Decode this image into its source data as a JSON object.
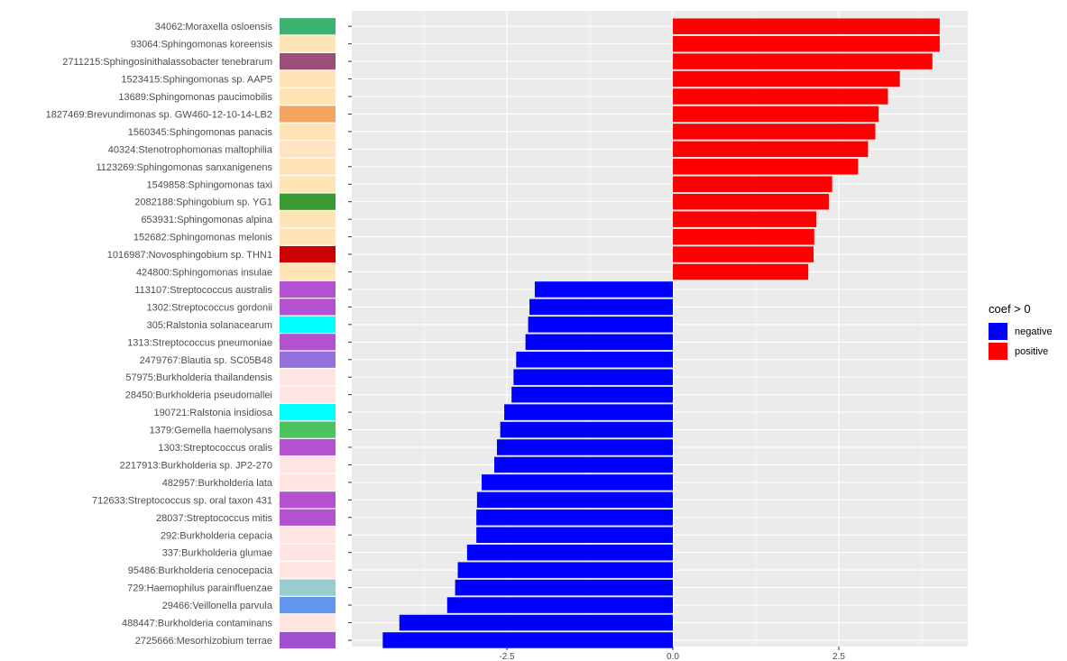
{
  "chart_data": {
    "type": "bar",
    "orientation": "horizontal",
    "xlim": [
      -4.8,
      4.4
    ],
    "x_ticks": [
      -2.5,
      0.0,
      2.5
    ],
    "x_tick_labels": [
      "-2.5",
      "0.0",
      "2.5"
    ],
    "grid": true,
    "legend_title": "coef > 0",
    "legend_placement": "right",
    "legend": [
      {
        "label": "negative",
        "color": "#0000ff"
      },
      {
        "label": "positive",
        "color": "#ff0000"
      }
    ],
    "categories": [
      {
        "label": "34062:Moraxella osloensis",
        "value": 4.02,
        "strip": "#3cb371"
      },
      {
        "label": "93064:Sphingomonas koreensis",
        "value": 4.02,
        "strip": "#ffe4b5"
      },
      {
        "label": "2711215:Sphingosinithalassobacter tenebrarum",
        "value": 3.91,
        "strip": "#9b4f78"
      },
      {
        "label": "1523415:Sphingomonas sp. AAP5",
        "value": 3.42,
        "strip": "#ffe4b5"
      },
      {
        "label": "13689:Sphingomonas paucimobilis",
        "value": 3.24,
        "strip": "#ffe4b5"
      },
      {
        "label": "1827469:Brevundimonas sp. GW460-12-10-14-LB2",
        "value": 3.1,
        "strip": "#f4a460"
      },
      {
        "label": "1560345:Sphingomonas panacis",
        "value": 3.05,
        "strip": "#ffe4b5"
      },
      {
        "label": "40324:Stenotrophomonas maltophilia",
        "value": 2.94,
        "strip": "#ffe4c4"
      },
      {
        "label": "1123269:Sphingomonas sanxanigenens",
        "value": 2.79,
        "strip": "#ffe4b5"
      },
      {
        "label": "1549858:Sphingomonas taxi",
        "value": 2.4,
        "strip": "#ffe4b5"
      },
      {
        "label": "2082188:Sphingobium sp. YG1",
        "value": 2.35,
        "strip": "#3a9a32"
      },
      {
        "label": "653931:Sphingomonas alpina",
        "value": 2.16,
        "strip": "#ffe4b5"
      },
      {
        "label": "152682:Sphingomonas melonis",
        "value": 2.13,
        "strip": "#ffe4b5"
      },
      {
        "label": "1016987:Novosphingobium sp. THN1",
        "value": 2.12,
        "strip": "#cc0000"
      },
      {
        "label": "424800:Sphingomonas insulae",
        "value": 2.04,
        "strip": "#ffe4b5"
      },
      {
        "label": "113107:Streptococcus australis",
        "value": -2.08,
        "strip": "#b452d1"
      },
      {
        "label": "1302:Streptococcus gordonii",
        "value": -2.16,
        "strip": "#b452d1"
      },
      {
        "label": "305:Ralstonia solanacearum",
        "value": -2.18,
        "strip": "#00ffff"
      },
      {
        "label": "1313:Streptococcus pneumoniae",
        "value": -2.22,
        "strip": "#b452d1"
      },
      {
        "label": "2479767:Blautia sp. SC05B48",
        "value": -2.36,
        "strip": "#9370db"
      },
      {
        "label": "57975:Burkholderia thailandensis",
        "value": -2.4,
        "strip": "#ffe4e1"
      },
      {
        "label": "28450:Burkholderia pseudomallei",
        "value": -2.43,
        "strip": "#ffe4e1"
      },
      {
        "label": "190721:Ralstonia insidiosa",
        "value": -2.54,
        "strip": "#00ffff"
      },
      {
        "label": "1379:Gemella haemolysans",
        "value": -2.6,
        "strip": "#4cc35e"
      },
      {
        "label": "1303:Streptococcus oralis",
        "value": -2.65,
        "strip": "#b452d1"
      },
      {
        "label": "2217913:Burkholderia sp. JP2-270",
        "value": -2.69,
        "strip": "#ffe4e1"
      },
      {
        "label": "482957:Burkholderia lata",
        "value": -2.88,
        "strip": "#ffe4e1"
      },
      {
        "label": "712633:Streptococcus sp. oral taxon 431",
        "value": -2.95,
        "strip": "#b452d1"
      },
      {
        "label": "28037:Streptococcus mitis",
        "value": -2.96,
        "strip": "#b452d1"
      },
      {
        "label": "292:Burkholderia cepacia",
        "value": -2.96,
        "strip": "#ffe4e1"
      },
      {
        "label": "337:Burkholderia glumae",
        "value": -3.1,
        "strip": "#ffe4e1"
      },
      {
        "label": "95486:Burkholderia cenocepacia",
        "value": -3.24,
        "strip": "#ffe4e1"
      },
      {
        "label": "729:Haemophilus parainfluenzae",
        "value": -3.28,
        "strip": "#99cccc"
      },
      {
        "label": "29466:Veillonella parvula",
        "value": -3.4,
        "strip": "#6495ed"
      },
      {
        "label": "488447:Burkholderia contaminans",
        "value": -4.12,
        "strip": "#ffe4e1"
      },
      {
        "label": "2725666:Mesorhizobium terrae",
        "value": -4.37,
        "strip": "#a050d0"
      }
    ]
  }
}
